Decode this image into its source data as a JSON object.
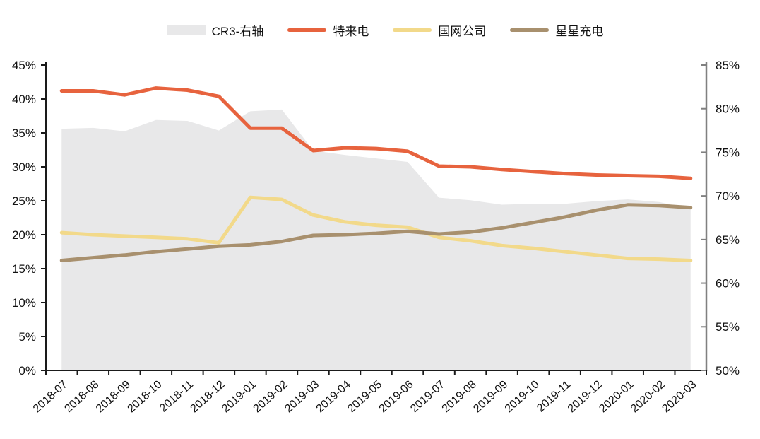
{
  "page": {
    "background": "#ffffff"
  },
  "legend": {
    "items": [
      {
        "id": "cr3",
        "label": "CR3-右轴",
        "color": "#E8E8E9",
        "swatch": "area"
      },
      {
        "id": "teld",
        "label": "特来电",
        "color": "#E7633E",
        "swatch": "line"
      },
      {
        "id": "state-grid",
        "label": "国网公司",
        "color": "#F2D98A",
        "swatch": "line"
      },
      {
        "id": "star-charge",
        "label": "星星充电",
        "color": "#A8906E",
        "swatch": "line"
      }
    ]
  },
  "chart_data": {
    "type": "area+line combo",
    "title": "",
    "xlabel": "",
    "ylabel_left": "",
    "ylabel_right": "",
    "grid": false,
    "legend_position": "top",
    "x": [
      "2018-07",
      "2018-08",
      "2018-09",
      "2018-10",
      "2018-11",
      "2018-12",
      "2019-01",
      "2019-02",
      "2019-03",
      "2019-04",
      "2019-05",
      "2019-06",
      "2019-07",
      "2019-08",
      "2019-09",
      "2019-10",
      "2019-11",
      "2019-12",
      "2020-01",
      "2020-02",
      "2020-03"
    ],
    "left_axis": {
      "min": 0,
      "max": 45,
      "step": 5,
      "tick_labels": [
        "0%",
        "5%",
        "10%",
        "15%",
        "20%",
        "25%",
        "30%",
        "35%",
        "40%",
        "45%"
      ],
      "color": "#1a1a1a"
    },
    "right_axis": {
      "min": 50,
      "max": 85,
      "step": 5,
      "tick_labels": [
        "50%",
        "55%",
        "60%",
        "65%",
        "70%",
        "75%",
        "80%",
        "85%"
      ],
      "color": "#808080"
    },
    "series": [
      {
        "id": "cr3",
        "name": "CR3-右轴",
        "type": "area",
        "axis": "right",
        "color": "#E8E8E9",
        "values": [
          77.7,
          77.8,
          77.4,
          78.7,
          78.6,
          77.5,
          79.7,
          79.9,
          75.2,
          74.7,
          74.3,
          73.9,
          69.8,
          69.5,
          69.0,
          69.1,
          69.1,
          69.4,
          69.6,
          69.3,
          68.5
        ]
      },
      {
        "id": "teld",
        "name": "特来电",
        "type": "line",
        "axis": "left",
        "color": "#E7633E",
        "values": [
          41.2,
          41.2,
          40.6,
          41.6,
          41.3,
          40.4,
          35.7,
          35.7,
          32.4,
          32.8,
          32.7,
          32.3,
          30.1,
          30.0,
          29.6,
          29.3,
          29.0,
          28.8,
          28.7,
          28.6,
          28.3
        ]
      },
      {
        "id": "state-grid",
        "name": "国网公司",
        "type": "line",
        "axis": "left",
        "color": "#F2D98A",
        "values": [
          20.3,
          20.0,
          19.8,
          19.6,
          19.4,
          18.8,
          25.5,
          25.2,
          22.9,
          21.9,
          21.4,
          21.1,
          19.6,
          19.1,
          18.4,
          18.0,
          17.5,
          17.0,
          16.5,
          16.4,
          16.2
        ]
      },
      {
        "id": "star-charge",
        "name": "星星充电",
        "type": "line",
        "axis": "left",
        "color": "#A8906E",
        "values": [
          16.2,
          16.6,
          17.0,
          17.5,
          17.9,
          18.3,
          18.5,
          19.0,
          19.9,
          20.0,
          20.2,
          20.5,
          20.1,
          20.4,
          21.0,
          21.8,
          22.6,
          23.6,
          24.4,
          24.3,
          24.0
        ]
      }
    ]
  }
}
